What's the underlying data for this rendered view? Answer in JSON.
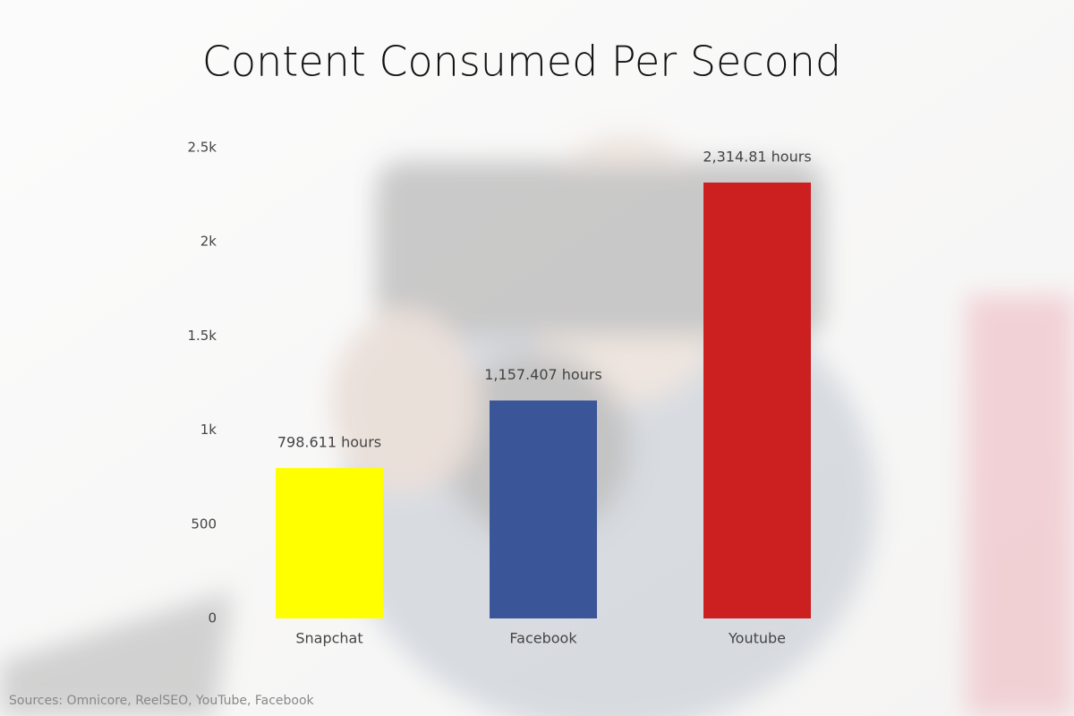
{
  "chart_data": {
    "type": "bar",
    "title": "Content Consumed Per Second",
    "categories": [
      "Snapchat",
      "Facebook",
      "Youtube"
    ],
    "values": [
      798.611,
      1157.407,
      2314.81
    ],
    "value_labels": [
      "798.611 hours",
      "1,157.407 hours",
      "2,314.81 hours"
    ],
    "colors": [
      "#ffff00",
      "#3a5699",
      "#cc1f1f"
    ],
    "ylim": [
      0,
      2500
    ],
    "yticks": [
      0,
      500,
      {
        "value": 1000,
        "label": "1k"
      },
      {
        "value": 1500,
        "label": "1.5k"
      },
      {
        "value": 2000,
        "label": "2k"
      },
      {
        "value": 2500,
        "label": "2.5k"
      }
    ],
    "grid": false,
    "source": "Sources: Omnicore, ReelSEO, YouTube, Facebook"
  }
}
